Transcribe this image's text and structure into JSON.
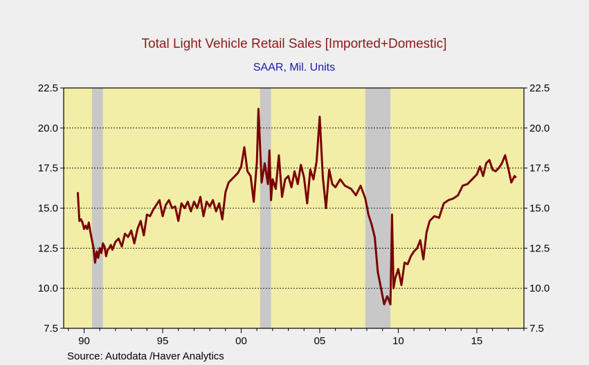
{
  "chart_data": {
    "type": "line",
    "title": "Total Light Vehicle Retail Sales [Imported+Domestic]",
    "subtitle": "SAAR, Mil. Units",
    "source": "Source:  Autodata /Haver Analytics",
    "xlim": [
      1988.7,
      2018.0
    ],
    "ylim": [
      7.5,
      22.5
    ],
    "y_ticks": [
      7.5,
      10.0,
      12.5,
      15.0,
      17.5,
      20.0,
      22.5
    ],
    "y_tick_labels": [
      "7.5",
      "10.0",
      "12.5",
      "15.0",
      "17.5",
      "20.0",
      "22.5"
    ],
    "x_ticks": [
      1990,
      1995,
      2000,
      2005,
      2010,
      2015
    ],
    "x_tick_labels": [
      "90",
      "95",
      "00",
      "05",
      "10",
      "15"
    ],
    "grid": true,
    "recessions": [
      [
        1990.5,
        1991.2
      ],
      [
        2001.2,
        2001.9
      ],
      [
        2007.9,
        2009.5
      ]
    ],
    "colors": {
      "line": "#7a0000",
      "plot_background": "#f2eea8",
      "recession": "#c8c8c8",
      "title": "#8b1a1a",
      "subtitle": "#1a1aa8"
    },
    "series": [
      {
        "x": [
          1989.6,
          1989.7,
          1989.8,
          1989.9,
          1990.0,
          1990.1,
          1990.2,
          1990.3,
          1990.4,
          1990.5,
          1990.6,
          1990.7,
          1990.8,
          1990.9,
          1991.0,
          1991.1,
          1991.2,
          1991.3,
          1991.4,
          1991.5,
          1991.6,
          1991.7,
          1991.8,
          1992.0,
          1992.2,
          1992.4,
          1992.6,
          1992.8,
          1993.0,
          1993.2,
          1993.4,
          1993.6,
          1993.8,
          1994.0,
          1994.2,
          1994.4,
          1994.6,
          1994.8,
          1995.0,
          1995.2,
          1995.4,
          1995.6,
          1995.8,
          1996.0,
          1996.2,
          1996.4,
          1996.6,
          1996.8,
          1997.0,
          1997.2,
          1997.4,
          1997.6,
          1997.8,
          1998.0,
          1998.2,
          1998.4,
          1998.6,
          1998.8,
          1999.0,
          1999.2,
          1999.4,
          1999.6,
          1999.8,
          2000.0,
          2000.2,
          2000.4,
          2000.6,
          2000.8,
          2001.0,
          2001.1,
          2001.3,
          2001.5,
          2001.7,
          2001.8,
          2001.9,
          2002.0,
          2002.2,
          2002.4,
          2002.6,
          2002.8,
          2003.0,
          2003.2,
          2003.4,
          2003.6,
          2003.8,
          2004.0,
          2004.2,
          2004.4,
          2004.6,
          2004.8,
          2005.0,
          2005.2,
          2005.4,
          2005.6,
          2005.8,
          2006.0,
          2006.3,
          2006.6,
          2007.0,
          2007.3,
          2007.6,
          2007.9,
          2008.1,
          2008.3,
          2008.5,
          2008.7,
          2008.9,
          2009.1,
          2009.3,
          2009.5,
          2009.6,
          2009.7,
          2009.8,
          2010.0,
          2010.2,
          2010.4,
          2010.6,
          2010.8,
          2011.0,
          2011.2,
          2011.4,
          2011.6,
          2011.8,
          2012.0,
          2012.3,
          2012.6,
          2012.9,
          2013.2,
          2013.5,
          2013.8,
          2014.1,
          2014.4,
          2014.7,
          2015.0,
          2015.2,
          2015.4,
          2015.6,
          2015.8,
          2016.0,
          2016.2,
          2016.4,
          2016.6,
          2016.8,
          2017.0,
          2017.2,
          2017.4,
          2017.5
        ],
        "y": [
          16.0,
          14.2,
          14.3,
          14.1,
          13.7,
          13.9,
          13.7,
          14.1,
          13.5,
          13.0,
          12.5,
          11.6,
          12.3,
          11.9,
          12.5,
          12.2,
          12.8,
          12.6,
          12.0,
          12.4,
          12.5,
          12.7,
          12.4,
          12.9,
          13.1,
          12.6,
          13.4,
          13.2,
          13.6,
          12.8,
          13.7,
          14.2,
          13.3,
          14.6,
          14.5,
          14.9,
          15.2,
          15.5,
          14.5,
          15.2,
          15.5,
          15.0,
          15.1,
          14.2,
          15.3,
          15.0,
          15.4,
          14.8,
          15.4,
          15.0,
          15.7,
          14.5,
          15.4,
          15.1,
          15.5,
          14.8,
          15.3,
          14.3,
          16.0,
          16.6,
          16.8,
          17.0,
          17.2,
          17.6,
          18.8,
          17.3,
          17.0,
          15.4,
          17.9,
          21.2,
          16.6,
          17.8,
          16.5,
          18.6,
          15.5,
          16.8,
          16.2,
          18.3,
          15.7,
          16.8,
          17.0,
          16.3,
          17.3,
          16.5,
          17.7,
          16.9,
          15.3,
          17.4,
          16.8,
          17.9,
          20.7,
          16.9,
          15.0,
          17.4,
          16.5,
          16.3,
          16.8,
          16.4,
          16.2,
          15.8,
          16.4,
          15.6,
          14.6,
          14.0,
          13.2,
          11.0,
          10.0,
          9.0,
          9.5,
          9.0,
          14.6,
          10.0,
          10.6,
          11.2,
          10.2,
          11.6,
          11.5,
          12.0,
          12.3,
          12.5,
          13.0,
          11.8,
          13.5,
          14.2,
          14.5,
          14.4,
          15.3,
          15.5,
          15.6,
          15.8,
          16.4,
          16.5,
          16.8,
          17.1,
          17.6,
          17.0,
          17.8,
          18.0,
          17.4,
          17.3,
          17.5,
          17.8,
          18.3,
          17.5,
          16.6,
          17.0,
          16.9
        ]
      }
    ]
  }
}
